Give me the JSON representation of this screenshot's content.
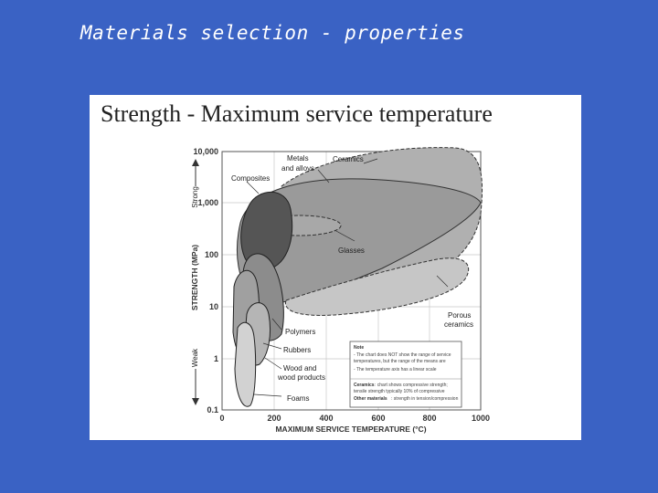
{
  "slide": {
    "title": "Materials selection - properties"
  },
  "figure": {
    "title": "Strength - Maximum service temperature",
    "y_axis": {
      "label": "STRENGTH (MPa)",
      "ticks": [
        "10,000",
        "1,000",
        "100",
        "10",
        "1",
        "0.1"
      ],
      "strong_label": "Strong",
      "weak_label": "Weak"
    },
    "x_axis": {
      "label": "MAXIMUM SERVICE TEMPERATURE (°C)",
      "ticks": [
        "0",
        "200",
        "400",
        "600",
        "800",
        "1000"
      ]
    },
    "regions": {
      "metals": "Metals",
      "metals2": "and alloys",
      "ceramics": "Ceramics",
      "composites": "Composites",
      "glasses": "Glasses",
      "porous": "Porous",
      "porous2": "ceramics",
      "polymers": "Polymers",
      "rubbers": "Rubbers",
      "wood": "Wood and",
      "wood2": "wood products",
      "foams": "Foams"
    },
    "note": {
      "heading": "Note",
      "line1": "- The chart does NOT show the range of service",
      "line2": "  temperatures, but the range of the means are",
      "line3": "- The temperature axis has a linear scale",
      "ceramics_label": "Ceramics",
      "ceramics_text1": ": chart shows compressive strength;",
      "ceramics_text2": "tensile strength typically 10% of compressive",
      "other_label": "Other materials",
      "other_text": ": strength in tension/compression"
    }
  }
}
